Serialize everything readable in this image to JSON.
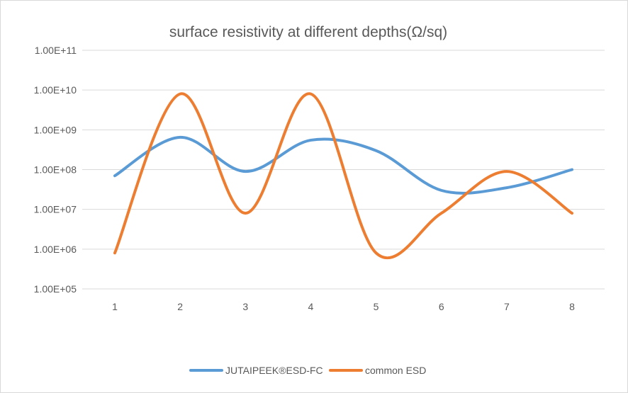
{
  "chart_data": {
    "type": "line",
    "title": "surface resistivity at different depths(Ω/sq)",
    "xlabel": "",
    "ylabel": "",
    "categories": [
      "1",
      "2",
      "3",
      "4",
      "5",
      "6",
      "7",
      "8"
    ],
    "y_scale": "log",
    "ylim": [
      100000,
      100000000000
    ],
    "y_ticks": [
      "1.00E+05",
      "1.00E+06",
      "1.00E+07",
      "1.00E+08",
      "1.00E+09",
      "1.00E+10",
      "1.00E+11"
    ],
    "grid": true,
    "smooth": true,
    "legend_position": "bottom",
    "series": [
      {
        "name": "JUTAIPEEK®ESD-FC",
        "color": "#5b9bd5",
        "values": [
          70000000,
          650000000,
          90000000,
          550000000,
          300000000,
          30000000,
          35000000,
          100000000
        ]
      },
      {
        "name": "common ESD",
        "color": "#ed7d31",
        "values": [
          800000,
          8000000000,
          8000000,
          8000000000,
          800000,
          8000000,
          90000000,
          8000000
        ]
      }
    ]
  }
}
